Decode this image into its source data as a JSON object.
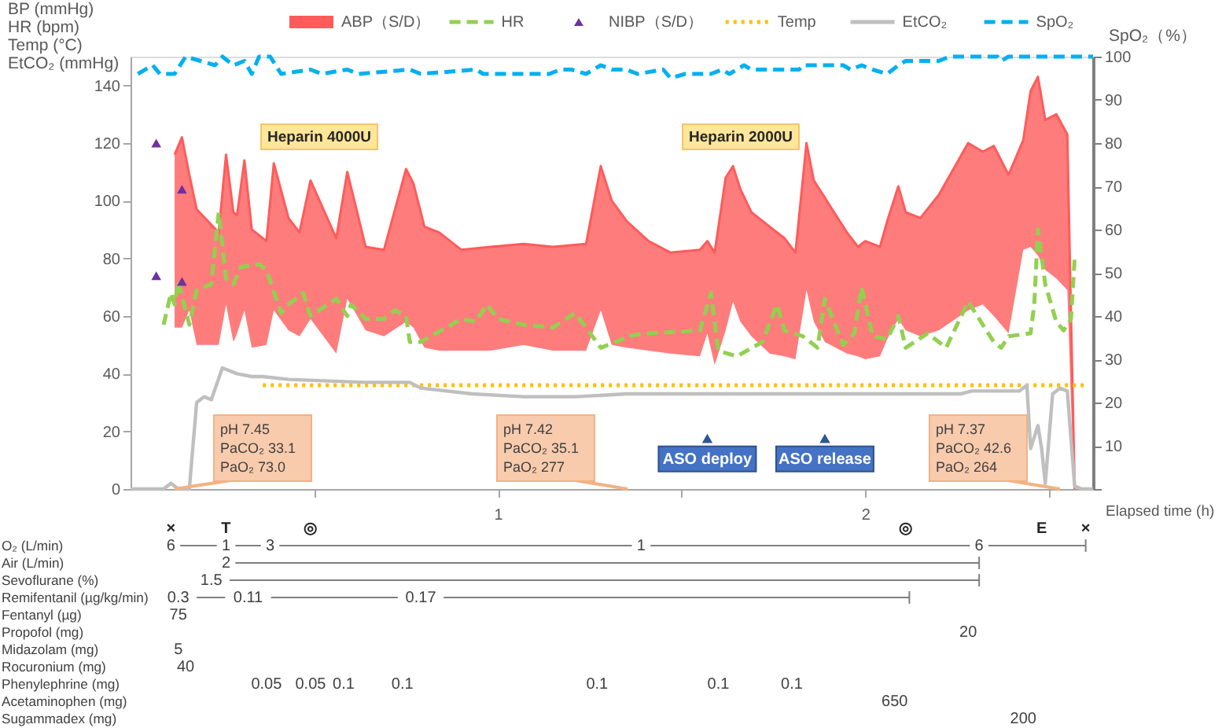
{
  "chart_data": [
    {
      "type": "line",
      "ylabel": "BP (mmHg)\nHR (bpm)\nTemp (°C)\nEtCO₂ (mmHg)",
      "y2label": "SpO₂（%）",
      "xlabel": "Elapsed time (h)",
      "xlim": [
        0,
        2.62
      ],
      "xticks": [
        {
          "value": 0.5,
          "label": null
        },
        1,
        {
          "value": 1.5,
          "label": null
        },
        2,
        {
          "value": 2.5,
          "label": null
        }
      ],
      "ylim": [
        0,
        150
      ],
      "yticks": [
        0,
        20,
        40,
        60,
        80,
        100,
        120,
        140
      ],
      "y2lim": [
        0,
        100
      ],
      "y2ticks": [
        {
          "value": 0,
          "label": null
        },
        10,
        20,
        30,
        40,
        50,
        60,
        70,
        80,
        90,
        100
      ],
      "grid": false,
      "legend": "top",
      "series": [
        {
          "name": "ABP（S/D）",
          "color": "#ff5b5b",
          "x": [
            0.12,
            0.14,
            0.16,
            0.18,
            0.21,
            0.24,
            0.26,
            0.28,
            0.29,
            0.31,
            0.33,
            0.37,
            0.39,
            0.43,
            0.46,
            0.49,
            0.56,
            0.59,
            0.64,
            0.69,
            0.75,
            0.77,
            0.8,
            0.84,
            0.9,
            0.98,
            1.07,
            1.15,
            1.24,
            1.28,
            1.31,
            1.35,
            1.41,
            1.47,
            1.55,
            1.57,
            1.59,
            1.62,
            1.64,
            1.66,
            1.69,
            1.74,
            1.78,
            1.81,
            1.84,
            1.86,
            1.89,
            1.95,
            1.98,
            2.0,
            2.04,
            2.06,
            2.09,
            2.11,
            2.15,
            2.2,
            2.28,
            2.32,
            2.35,
            2.39,
            2.43,
            2.45,
            2.47,
            2.49,
            2.52,
            2.55,
            2.56,
            2.57
          ],
          "values": [
            116,
            122,
            109,
            97,
            93,
            89,
            116,
            96,
            95,
            114,
            90,
            86,
            113,
            94,
            89,
            107,
            87,
            110,
            84,
            83,
            111,
            106,
            91,
            89,
            83,
            84,
            85,
            84,
            85,
            112,
            100,
            93,
            86,
            82,
            83,
            86,
            82,
            108,
            112,
            104,
            96,
            91,
            87,
            82,
            120,
            107,
            101,
            89,
            84,
            86,
            84,
            93,
            105,
            96,
            94,
            102,
            120,
            117,
            119,
            109,
            121,
            138,
            143,
            128,
            130,
            123,
            60,
            0
          ],
          "upper": [
            116,
            122,
            109,
            97,
            93,
            89,
            116,
            96,
            95,
            114,
            90,
            86,
            113,
            94,
            89,
            107,
            87,
            110,
            84,
            83,
            111,
            106,
            91,
            89,
            83,
            84,
            85,
            84,
            85,
            112,
            100,
            93,
            86,
            82,
            83,
            86,
            82,
            108,
            112,
            104,
            96,
            91,
            87,
            82,
            120,
            107,
            101,
            89,
            84,
            86,
            84,
            93,
            105,
            96,
            94,
            102,
            120,
            117,
            119,
            109,
            121,
            138,
            143,
            128,
            130,
            123,
            60,
            0
          ],
          "lower": [
            56,
            56,
            62,
            50,
            50,
            50,
            64,
            51,
            54,
            62,
            49,
            50,
            62,
            55,
            53,
            59,
            47,
            66,
            55,
            53,
            58,
            56,
            49,
            48,
            48,
            48,
            50,
            48,
            48,
            62,
            50,
            49,
            48,
            47,
            46,
            54,
            43,
            55,
            65,
            58,
            53,
            47,
            46,
            45,
            69,
            58,
            51,
            47,
            46,
            45,
            46,
            52,
            59,
            55,
            53,
            55,
            62,
            64,
            60,
            54,
            83,
            84,
            81,
            76,
            73,
            69,
            30,
            0
          ]
        },
        {
          "name": "HR",
          "line_style": "dashed",
          "color": "#92d050",
          "x": [
            0.09,
            0.11,
            0.12,
            0.13,
            0.16,
            0.18,
            0.22,
            0.24,
            0.26,
            0.28,
            0.3,
            0.35,
            0.37,
            0.41,
            0.43,
            0.47,
            0.49,
            0.56,
            0.59,
            0.6,
            0.64,
            0.69,
            0.72,
            0.75,
            0.76,
            0.79,
            0.86,
            0.9,
            0.94,
            0.97,
            1.0,
            1.07,
            1.15,
            1.21,
            1.24,
            1.28,
            1.34,
            1.35,
            1.41,
            1.55,
            1.58,
            1.6,
            1.65,
            1.72,
            1.76,
            1.78,
            1.83,
            1.87,
            1.89,
            1.94,
            1.97,
            1.99,
            2.02,
            2.06,
            2.09,
            2.11,
            2.17,
            2.22,
            2.28,
            2.35,
            2.37,
            2.39,
            2.45,
            2.46,
            2.47,
            2.49,
            2.52,
            2.54,
            2.56,
            2.57
          ],
          "values": [
            57,
            68,
            64,
            72,
            57,
            69,
            71,
            96,
            73,
            71,
            77,
            78,
            76,
            61,
            64,
            68,
            60,
            66,
            60,
            64,
            59,
            59,
            62,
            60,
            51,
            51,
            56,
            59,
            58,
            64,
            59,
            57,
            56,
            61,
            56,
            49,
            52,
            53,
            54,
            55,
            68,
            48,
            46,
            51,
            64,
            55,
            53,
            49,
            66,
            50,
            54,
            70,
            53,
            52,
            60,
            49,
            54,
            49,
            65,
            51,
            49,
            53,
            54,
            64,
            90,
            71,
            58,
            55,
            59,
            80
          ]
        },
        {
          "name": "NIBP（S/D）",
          "type": "scatter",
          "marker": "triangle",
          "color": "#7030a0",
          "x": [
            0.07,
            0.07,
            0.14,
            0.14
          ],
          "values": [
            120,
            74,
            104,
            72
          ]
        },
        {
          "name": "Temp",
          "line_style": "dotted",
          "color": "#ffc000",
          "x": [
            0.36,
            2.6
          ],
          "values": [
            36,
            36
          ]
        },
        {
          "name": "EtCO₂",
          "line_style": "solid",
          "color": "#bfbfbf",
          "x": [
            0,
            0.09,
            0.11,
            0.13,
            0.16,
            0.18,
            0.2,
            0.22,
            0.25,
            0.29,
            0.33,
            0.36,
            0.43,
            0.64,
            0.76,
            0.79,
            0.93,
            1.07,
            1.21,
            1.35,
            1.98,
            2.26,
            2.29,
            2.42,
            2.44,
            2.45,
            2.47,
            2.48,
            2.49,
            2.51,
            2.53,
            2.55,
            2.57,
            2.59,
            2.62
          ],
          "values": [
            0,
            0,
            2,
            0,
            0,
            30,
            32,
            31,
            42,
            40,
            39,
            39,
            38,
            37,
            37,
            35,
            33,
            32,
            32,
            33,
            33,
            33,
            34,
            34,
            36,
            14,
            22,
            14,
            2,
            33,
            35,
            34,
            1,
            0,
            0
          ]
        },
        {
          "name": "SpO₂",
          "line_style": "dashed",
          "axis": "y2",
          "color": "#00b0f0",
          "x": [
            0.02,
            0.06,
            0.08,
            0.12,
            0.15,
            0.19,
            0.23,
            0.25,
            0.28,
            0.31,
            0.33,
            0.35,
            0.38,
            0.41,
            0.49,
            0.52,
            0.59,
            0.62,
            0.76,
            0.79,
            0.94,
            0.96,
            1.14,
            1.17,
            1.2,
            1.24,
            1.28,
            1.31,
            1.35,
            1.38,
            1.45,
            1.47,
            1.51,
            1.58,
            1.61,
            1.63,
            1.67,
            1.69,
            1.82,
            1.83,
            1.94,
            1.96,
            1.99,
            2.02,
            2.06,
            2.09,
            2.11,
            2.2,
            2.23,
            2.36,
            2.37,
            2.39,
            2.62
          ],
          "values": [
            96,
            98,
            96,
            96,
            100,
            99,
            98,
            100,
            98,
            99,
            96,
            100,
            100,
            96,
            97,
            96,
            97,
            96,
            97,
            96,
            97,
            96,
            96,
            97,
            97,
            96,
            98,
            97,
            97,
            96,
            97,
            95,
            96,
            96,
            97,
            96,
            98,
            97,
            97,
            98,
            98,
            97,
            98,
            97,
            96,
            98,
            99,
            99,
            100,
            100,
            99,
            100,
            100
          ]
        }
      ],
      "annotations": [
        "Heparin 4000U",
        "Heparin 2000U",
        {
          "text": "pH 7.45\nPaCO₂ 33.1\nPaO₂ 73.0",
          "x": 0.12,
          "y": 0
        },
        "pH 7.42\nPaCO₂ 35.1\nPaO₂ 277",
        "pH 7.37\nPaCO₂ 42.6\nPaO₂ 264",
        {
          "text": "ASO deploy",
          "x": 1.57,
          "y": 17
        },
        {
          "text": "ASO release",
          "x": 1.89,
          "y": 17
        }
      ]
    },
    {
      "type": "other",
      "annotations": [
        "O₂ (L/min)",
        "Air (L/min)",
        "Sevoflurane (%)",
        "Remifentanil (µg/kg/min)",
        "Fentanyl (µg)",
        "Propofol (mg)",
        "Midazolam (mg)",
        "Rocuronium (mg)",
        "Phenylephrine (mg)",
        "Acetaminophen (mg)",
        "Sugammadex (mg)",
        "×",
        "T",
        "◎",
        "◎",
        "E",
        "×",
        "6",
        "1",
        "3",
        "1",
        "6",
        "2",
        "1.5",
        "0.3",
        "0.11",
        "0.17",
        "75",
        "20",
        "5",
        "40",
        "0.05",
        "0.05",
        "0.1",
        "0.1",
        "0.1",
        "0.1",
        "0.1",
        "650",
        "200"
      ]
    }
  ]
}
